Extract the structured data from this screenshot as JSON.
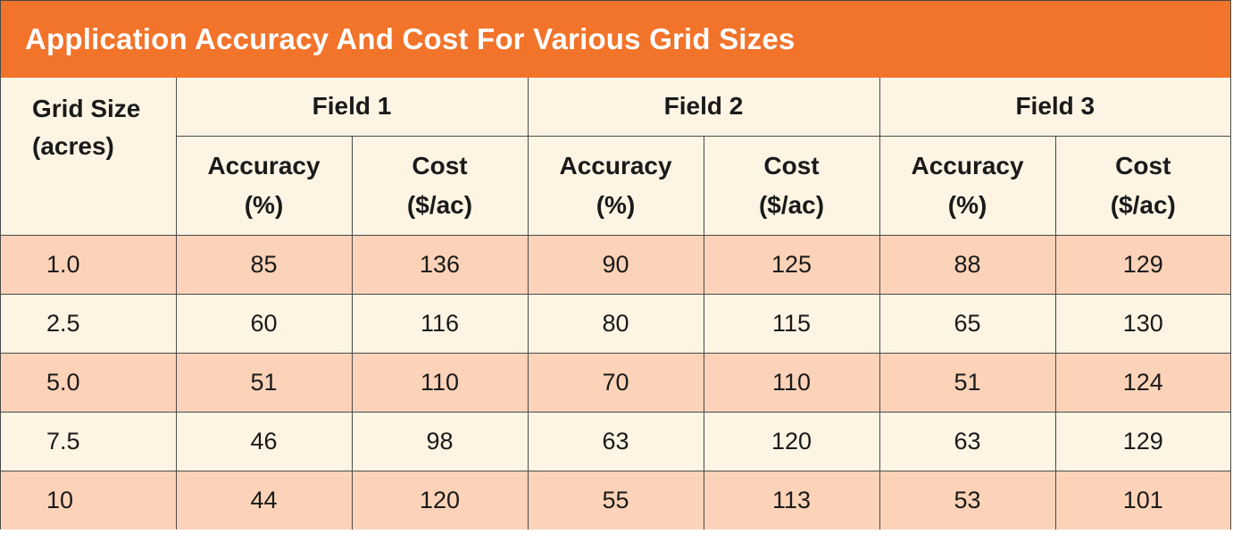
{
  "title": "Application Accuracy And Cost For Various Grid Sizes",
  "header": {
    "grid_size_line1": "Grid Size",
    "grid_size_line2": "(acres)",
    "fields": [
      "Field 1",
      "Field 2",
      "Field 3"
    ],
    "accuracy_line1": "Accuracy",
    "accuracy_line2": "(%)",
    "cost_line1": "Cost",
    "cost_line2": "($/ac)"
  },
  "rows": [
    {
      "grid": "1.0",
      "f1_acc": "85",
      "f1_cost": "136",
      "f2_acc": "90",
      "f2_cost": "125",
      "f3_acc": "88",
      "f3_cost": "129"
    },
    {
      "grid": "2.5",
      "f1_acc": "60",
      "f1_cost": "116",
      "f2_acc": "80",
      "f2_cost": "115",
      "f3_acc": "65",
      "f3_cost": "130"
    },
    {
      "grid": "5.0",
      "f1_acc": "51",
      "f1_cost": "110",
      "f2_acc": "70",
      "f2_cost": "110",
      "f3_acc": "51",
      "f3_cost": "124"
    },
    {
      "grid": "7.5",
      "f1_acc": "46",
      "f1_cost": "98",
      "f2_acc": "63",
      "f2_cost": "120",
      "f3_acc": "63",
      "f3_cost": "129"
    },
    {
      "grid": "10",
      "f1_acc": "44",
      "f1_cost": "120",
      "f2_acc": "55",
      "f2_cost": "113",
      "f3_acc": "53",
      "f3_cost": "101"
    }
  ],
  "colors": {
    "title_bar": "#f2732a",
    "title_text": "#ffffff",
    "row_shaded": "#fcd3b8",
    "row_plain": "#fdf4e4",
    "border": "#4a4a4a"
  }
}
